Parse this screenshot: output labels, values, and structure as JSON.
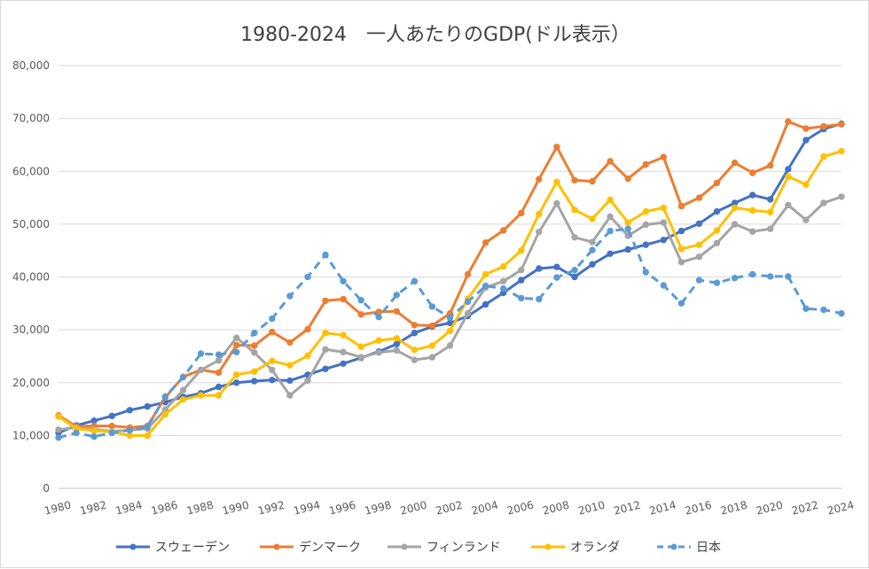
{
  "chart_data": {
    "type": "line",
    "title": "1980-2024　一人あたりのGDP(ドル表示）",
    "xlabel": "",
    "ylabel": "",
    "ylim": [
      0,
      80000
    ],
    "y_ticks": [
      "0",
      "10,000",
      "20,000",
      "30,000",
      "40,000",
      "50,000",
      "60,000",
      "70,000",
      "80,000"
    ],
    "x_ticks": [
      "1980",
      "1982",
      "1984",
      "1986",
      "1988",
      "1990",
      "1992",
      "1994",
      "1996",
      "1998",
      "2000",
      "2002",
      "2004",
      "2006",
      "2008",
      "2010",
      "2012",
      "2014",
      "2016",
      "2018",
      "2020",
      "2022",
      "2024"
    ],
    "grid": true,
    "legend_position": "bottom",
    "x": [
      1980,
      1981,
      1982,
      1983,
      1984,
      1985,
      1986,
      1987,
      1988,
      1989,
      1990,
      1991,
      1992,
      1993,
      1994,
      1995,
      1996,
      1997,
      1998,
      1999,
      2000,
      2001,
      2002,
      2003,
      2004,
      2005,
      2006,
      2007,
      2008,
      2009,
      2010,
      2011,
      2012,
      2013,
      2014,
      2015,
      2016,
      2017,
      2018,
      2019,
      2020,
      2021,
      2022,
      2023,
      2024
    ],
    "series": [
      {
        "name": "スウェーデン",
        "color": "#4472c4",
        "dashed": false,
        "values": [
          10500,
          11900,
          12800,
          13700,
          14800,
          15500,
          16300,
          17300,
          18000,
          19200,
          20000,
          20300,
          20500,
          20400,
          21500,
          22600,
          23600,
          24700,
          25900,
          27300,
          29400,
          30600,
          31300,
          32600,
          34800,
          37000,
          39400,
          41600,
          41900,
          40000,
          42400,
          44400,
          45200,
          46100,
          47000,
          48700,
          50100,
          52400,
          54000,
          55500,
          54700,
          60400,
          65900,
          68000,
          69000
        ]
      },
      {
        "name": "デンマーク",
        "color": "#ed7d31",
        "dashed": false,
        "values": [
          13800,
          11700,
          11800,
          11800,
          11500,
          11800,
          17200,
          21100,
          22400,
          21900,
          27100,
          27000,
          29600,
          27600,
          30100,
          35500,
          35800,
          32900,
          33400,
          33500,
          30900,
          30800,
          33100,
          40500,
          46500,
          48800,
          52100,
          58500,
          64600,
          58300,
          58100,
          61900,
          58600,
          61300,
          62700,
          53400,
          55000,
          57800,
          61600,
          59700,
          61100,
          69400,
          68100,
          68500,
          68900
        ]
      },
      {
        "name": "フィンランド",
        "color": "#a5a5a5",
        "dashed": false,
        "values": [
          11100,
          11500,
          11200,
          10800,
          11000,
          11300,
          14900,
          18600,
          22400,
          24200,
          28500,
          25700,
          22400,
          17600,
          20400,
          26300,
          25800,
          24800,
          25700,
          26100,
          24300,
          24800,
          27000,
          33100,
          38000,
          39200,
          41300,
          48500,
          53900,
          47500,
          46600,
          51400,
          47800,
          49900,
          50300,
          42800,
          43800,
          46400,
          50000,
          48600,
          49100,
          53600,
          50800,
          54000,
          55200
        ]
      },
      {
        "name": "オランダ",
        "color": "#ffc000",
        "dashed": false,
        "values": [
          13600,
          11300,
          10900,
          10700,
          10000,
          10000,
          14000,
          16800,
          17600,
          17600,
          21500,
          22100,
          24100,
          23300,
          25100,
          29400,
          29000,
          26800,
          28000,
          28400,
          26200,
          27000,
          29800,
          35900,
          40500,
          42000,
          45000,
          51900,
          58000,
          52700,
          51000,
          54600,
          50300,
          52400,
          53100,
          45300,
          46100,
          48800,
          53100,
          52600,
          52300,
          59000,
          57500,
          62800,
          63800
        ]
      },
      {
        "name": "日本",
        "color": "#5b9bd5",
        "dashed": true,
        "values": [
          9600,
          10500,
          9800,
          10500,
          11000,
          11600,
          17400,
          21000,
          25500,
          25300,
          25800,
          29400,
          32100,
          36400,
          40000,
          44200,
          39200,
          35600,
          32400,
          36600,
          39200,
          34400,
          32300,
          35300,
          38300,
          37800,
          36000,
          35800,
          39900,
          41300,
          45100,
          48700,
          49100,
          40900,
          38400,
          35000,
          39400,
          38900,
          39800,
          40500,
          40100,
          40100,
          34000,
          33800,
          33100
        ]
      }
    ]
  }
}
